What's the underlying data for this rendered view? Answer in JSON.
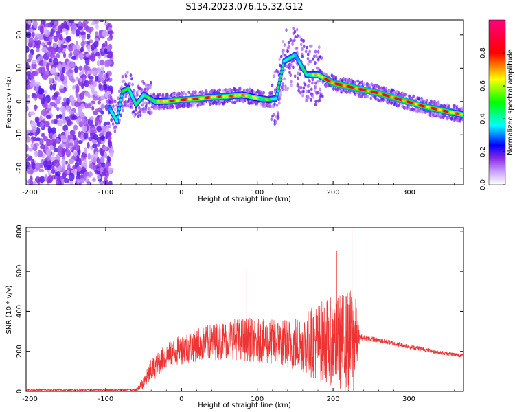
{
  "title": "S134.2023.076.15.32.G12",
  "chart_data": [
    {
      "type": "heatmap",
      "xlabel": "Height of straight line (km)",
      "ylabel": "Frequency (Hz)",
      "xlim": [
        -205,
        372
      ],
      "ylim": [
        -25,
        24.5
      ],
      "xticks": [
        -200,
        -100,
        0,
        100,
        200,
        300
      ],
      "yticks": [
        -20,
        -10,
        0,
        10,
        20
      ],
      "colorbar": {
        "label": "Normalized spectral amplitude",
        "range": [
          0,
          1
        ],
        "ticks": [
          0.0,
          0.2,
          0.4,
          0.6,
          0.8
        ],
        "colormap": [
          "#ffffff",
          "#8a2be2",
          "#0000ff",
          "#00ffff",
          "#00ff00",
          "#ffff00",
          "#ff0000",
          "#ff0080"
        ]
      },
      "noise_region": {
        "x": [
          -205,
          -92
        ],
        "y": [
          -25,
          24.5
        ]
      },
      "ridge": [
        {
          "x": -95,
          "y": -2,
          "a": 0.35
        },
        {
          "x": -85,
          "y": -6,
          "a": 0.45
        },
        {
          "x": -78,
          "y": 3,
          "a": 0.5
        },
        {
          "x": -70,
          "y": 4,
          "a": 0.55
        },
        {
          "x": -60,
          "y": -1,
          "a": 0.45
        },
        {
          "x": -50,
          "y": 2,
          "a": 0.5
        },
        {
          "x": -35,
          "y": 0,
          "a": 0.6
        },
        {
          "x": -20,
          "y": 0,
          "a": 0.8
        },
        {
          "x": 0,
          "y": 0.5,
          "a": 0.85
        },
        {
          "x": 20,
          "y": 0.8,
          "a": 0.85
        },
        {
          "x": 40,
          "y": 1.3,
          "a": 0.8
        },
        {
          "x": 60,
          "y": 1.5,
          "a": 0.8
        },
        {
          "x": 80,
          "y": 2,
          "a": 0.75
        },
        {
          "x": 100,
          "y": 1,
          "a": 0.65
        },
        {
          "x": 115,
          "y": 0.5,
          "a": 0.55
        },
        {
          "x": 125,
          "y": 1,
          "a": 0.45
        },
        {
          "x": 135,
          "y": 12,
          "a": 0.5
        },
        {
          "x": 150,
          "y": 14,
          "a": 0.4
        },
        {
          "x": 165,
          "y": 8,
          "a": 0.5
        },
        {
          "x": 180,
          "y": 8,
          "a": 0.75
        },
        {
          "x": 200,
          "y": 5.5,
          "a": 0.9
        },
        {
          "x": 230,
          "y": 4,
          "a": 0.9
        },
        {
          "x": 260,
          "y": 2.5,
          "a": 0.9
        },
        {
          "x": 290,
          "y": 0.5,
          "a": 0.9
        },
        {
          "x": 320,
          "y": -1.5,
          "a": 0.85
        },
        {
          "x": 350,
          "y": -3,
          "a": 0.85
        },
        {
          "x": 372,
          "y": -4,
          "a": 0.75
        }
      ]
    },
    {
      "type": "line",
      "xlabel": "Height of straight line (km)",
      "ylabel": "SNR (10 * v/v)",
      "xlim": [
        -205,
        372
      ],
      "ylim": [
        0,
        820
      ],
      "xticks": [
        -200,
        -100,
        0,
        100,
        200,
        300
      ],
      "yticks": [
        0,
        200,
        400,
        600,
        800
      ],
      "series": [
        {
          "color": "#ee3333",
          "envelope": {
            "x": [
              -205,
              -60,
              -50,
              -40,
              -20,
              0,
              20,
              40,
              60,
              80,
              100,
              120,
              140,
              160,
              180,
              200,
              215,
              228,
              235,
              260,
              300,
              340,
              372
            ],
            "base": [
              5,
              5,
              30,
              80,
              150,
              180,
              200,
              210,
              220,
              220,
              210,
              200,
              190,
              180,
              170,
              160,
              150,
              140,
              265,
              250,
              220,
              190,
              175
            ],
            "spread": [
              10,
              10,
              60,
              120,
              130,
              150,
              170,
              180,
              200,
              220,
              220,
              230,
              250,
              300,
              400,
              450,
              500,
              550,
              30,
              25,
              25,
              20,
              20
            ]
          },
          "spikes": [
            {
              "x": 86,
              "y": 610
            },
            {
              "x": 225,
              "y": 820
            },
            {
              "x": 205,
              "y": 700
            }
          ]
        }
      ]
    }
  ]
}
